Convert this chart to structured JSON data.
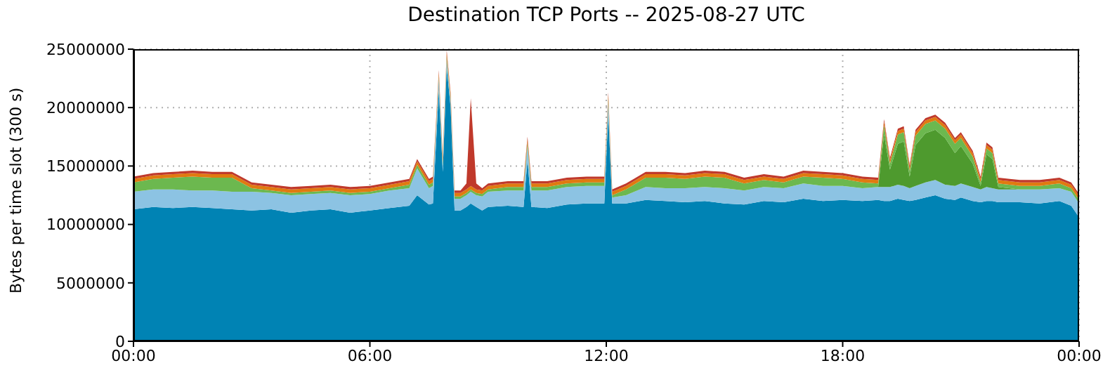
{
  "chart_data": {
    "type": "area",
    "title": "Destination TCP Ports -- 2025-08-27 UTC",
    "ylabel": "Bytes per time slot (300 s)",
    "stacked": true,
    "grid": true,
    "legend": false,
    "x": [
      0,
      0.5,
      1,
      1.5,
      2,
      2.5,
      3,
      3.5,
      4,
      4.5,
      5,
      5.5,
      6,
      6.5,
      7,
      7.2,
      7.5,
      7.6,
      7.75,
      7.85,
      7.95,
      8.05,
      8.15,
      8.3,
      8.45,
      8.56,
      8.7,
      8.85,
      9,
      9.5,
      9.9,
      10,
      10.1,
      10.5,
      11,
      11.5,
      11.95,
      12.05,
      12.15,
      12.5,
      13,
      13.5,
      14,
      14.5,
      15,
      15.5,
      16,
      16.5,
      17,
      17.5,
      18,
      18.5,
      18.9,
      19.05,
      19.2,
      19.4,
      19.55,
      19.7,
      19.85,
      20.1,
      20.35,
      20.6,
      20.85,
      21,
      21.3,
      21.5,
      21.65,
      21.8,
      21.95,
      22.5,
      23,
      23.5,
      23.8,
      24
    ],
    "xlim": [
      0,
      24
    ],
    "xticks": [
      {
        "value": 0,
        "label": "00:00"
      },
      {
        "value": 6,
        "label": "06:00"
      },
      {
        "value": 12,
        "label": "12:00"
      },
      {
        "value": 18,
        "label": "18:00"
      },
      {
        "value": 24,
        "label": "00:00"
      }
    ],
    "ylim": [
      0,
      25000000
    ],
    "yticks": [
      0,
      5000000,
      10000000,
      15000000,
      20000000,
      25000000
    ],
    "series": [
      {
        "color": "#0083b4",
        "values": [
          11300000,
          11500000,
          11400000,
          11500000,
          11400000,
          11300000,
          11200000,
          11300000,
          11000000,
          11200000,
          11300000,
          11000000,
          11200000,
          11400000,
          11600000,
          12500000,
          11700000,
          11800000,
          21500000,
          14500000,
          23500000,
          20000000,
          11200000,
          11200000,
          11500000,
          11800000,
          11500000,
          11200000,
          11500000,
          11600000,
          11500000,
          15500000,
          11500000,
          11400000,
          11700000,
          11800000,
          11800000,
          19500000,
          11800000,
          11800000,
          12100000,
          12000000,
          11900000,
          12000000,
          11800000,
          11700000,
          12000000,
          11900000,
          12200000,
          12000000,
          12100000,
          12000000,
          12100000,
          12000000,
          12000000,
          12200000,
          12100000,
          12000000,
          12100000,
          12300000,
          12500000,
          12200000,
          12100000,
          12300000,
          12000000,
          11900000,
          12000000,
          12000000,
          11900000,
          11900000,
          11800000,
          12000000,
          11600000,
          10600000
        ]
      },
      {
        "color": "#8cc3e3",
        "values": [
          1500000,
          1500000,
          1600000,
          1400000,
          1500000,
          1500000,
          1600000,
          1400000,
          1500000,
          1400000,
          1400000,
          1500000,
          1400000,
          1500000,
          1500000,
          2300000,
          1400000,
          1500000,
          1000000,
          500000,
          600000,
          500000,
          1000000,
          1000000,
          1000000,
          1000000,
          1000000,
          1200000,
          1300000,
          1300000,
          1400000,
          1200000,
          1400000,
          1500000,
          1500000,
          1500000,
          1500000,
          1000000,
          500000,
          700000,
          1100000,
          1100000,
          1200000,
          1200000,
          1300000,
          1200000,
          1200000,
          1200000,
          1300000,
          1300000,
          1200000,
          1100000,
          1100000,
          1200000,
          1200000,
          1200000,
          1200000,
          1100000,
          1200000,
          1300000,
          1300000,
          1200000,
          1200000,
          1200000,
          1200000,
          1100000,
          1200000,
          1100000,
          1100000,
          1100000,
          1200000,
          1100000,
          1200000,
          1200000
        ]
      },
      {
        "color": "#4e9a2e",
        "values": [
          0,
          0,
          0,
          0,
          0,
          0,
          0,
          0,
          0,
          0,
          0,
          0,
          0,
          0,
          0,
          0,
          0,
          0,
          0,
          0,
          0,
          0,
          0,
          0,
          0,
          0,
          0,
          0,
          0,
          0,
          0,
          0,
          0,
          0,
          0,
          0,
          0,
          0,
          0,
          0,
          0,
          0,
          0,
          0,
          0,
          0,
          0,
          0,
          0,
          0,
          0,
          0,
          0,
          4500000,
          1500000,
          3500000,
          3800000,
          1000000,
          3500000,
          4200000,
          4300000,
          4000000,
          2800000,
          3200000,
          2000000,
          300000,
          2800000,
          2500000,
          200000,
          0,
          0,
          0,
          0,
          0
        ]
      },
      {
        "color": "#6cb84f",
        "values": [
          800000,
          900000,
          1000000,
          1200000,
          1100000,
          1200000,
          300000,
          200000,
          200000,
          200000,
          200000,
          200000,
          200000,
          200000,
          300000,
          300000,
          300000,
          300000,
          200000,
          300000,
          300000,
          200000,
          200000,
          200000,
          200000,
          200000,
          200000,
          200000,
          200000,
          300000,
          300000,
          300000,
          300000,
          300000,
          300000,
          300000,
          300000,
          300000,
          200000,
          500000,
          800000,
          900000,
          800000,
          900000,
          900000,
          600000,
          600000,
          500000,
          600000,
          700000,
          600000,
          500000,
          300000,
          800000,
          500000,
          800000,
          800000,
          500000,
          800000,
          800000,
          800000,
          800000,
          800000,
          700000,
          600000,
          300000,
          500000,
          500000,
          300000,
          300000,
          300000,
          400000,
          300000,
          300000
        ]
      },
      {
        "color": "#e07a10",
        "values": [
          300000,
          300000,
          300000,
          300000,
          300000,
          300000,
          300000,
          300000,
          300000,
          300000,
          300000,
          300000,
          300000,
          300000,
          300000,
          300000,
          300000,
          300000,
          300000,
          300000,
          300000,
          300000,
          300000,
          300000,
          300000,
          300000,
          300000,
          300000,
          300000,
          300000,
          300000,
          300000,
          300000,
          300000,
          300000,
          300000,
          300000,
          300000,
          300000,
          300000,
          300000,
          300000,
          300000,
          300000,
          300000,
          300000,
          300000,
          300000,
          300000,
          300000,
          300000,
          300000,
          300000,
          300000,
          300000,
          300000,
          300000,
          300000,
          300000,
          300000,
          300000,
          300000,
          300000,
          300000,
          300000,
          300000,
          300000,
          300000,
          300000,
          300000,
          300000,
          300000,
          300000,
          300000
        ]
      },
      {
        "color": "#c0392b",
        "values": [
          200000,
          200000,
          200000,
          200000,
          200000,
          200000,
          200000,
          200000,
          200000,
          200000,
          200000,
          200000,
          200000,
          200000,
          200000,
          200000,
          200000,
          200000,
          200000,
          200000,
          200000,
          200000,
          200000,
          200000,
          500000,
          7500000,
          500000,
          200000,
          200000,
          200000,
          200000,
          200000,
          200000,
          200000,
          200000,
          200000,
          200000,
          200000,
          200000,
          200000,
          200000,
          200000,
          200000,
          200000,
          200000,
          200000,
          200000,
          200000,
          200000,
          200000,
          200000,
          200000,
          200000,
          200000,
          200000,
          200000,
          200000,
          200000,
          200000,
          200000,
          200000,
          200000,
          200000,
          200000,
          200000,
          200000,
          200000,
          200000,
          200000,
          200000,
          200000,
          200000,
          200000,
          200000
        ]
      }
    ]
  }
}
